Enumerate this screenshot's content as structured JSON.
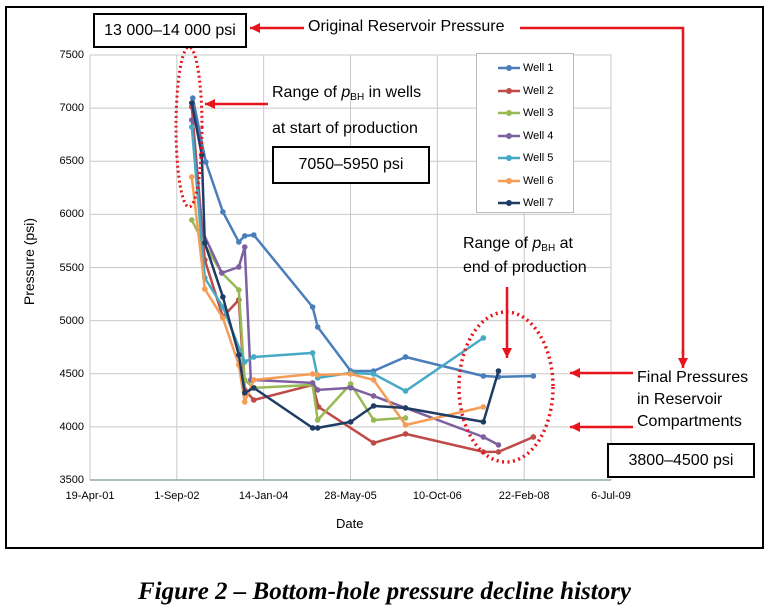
{
  "chart_data": {
    "type": "line",
    "xlabel": "Date",
    "ylabel": "Pressure (psi)",
    "ylim": [
      3500,
      7500
    ],
    "xlim": [
      "2001-04-19",
      "2009-07-06"
    ],
    "x_tick_labels": [
      "19-Apr-01",
      "1-Sep-02",
      "14-Jan-04",
      "28-May-05",
      "10-Oct-06",
      "22-Feb-08",
      "6-Jul-09"
    ],
    "y_tick_labels": [
      "3500",
      "4000",
      "4500",
      "5000",
      "5500",
      "6000",
      "6500",
      "7000",
      "7500"
    ],
    "grid": true,
    "legend_position": "top-right",
    "series": [
      {
        "name": "Well 1",
        "color": "#4a7ebb",
        "points": [
          [
            "2002-12-02",
            7095
          ],
          [
            "2003-02-15",
            6493
          ],
          [
            "2003-05-24",
            6023
          ],
          [
            "2003-08-24",
            5740
          ],
          [
            "2003-09-27",
            5797
          ],
          [
            "2003-11-18",
            5806
          ],
          [
            "2004-10-22",
            5128
          ],
          [
            "2004-11-20",
            4940
          ],
          [
            "2005-05-29",
            4526
          ],
          [
            "2005-10-08",
            4526
          ],
          [
            "2006-04-10",
            4658
          ],
          [
            "2007-07-02",
            4479
          ],
          [
            "2007-09-27",
            4470
          ],
          [
            "2008-04-15",
            4479
          ]
        ]
      },
      {
        "name": "Well 2",
        "color": "#be4b48",
        "points": [
          [
            "2002-11-26",
            7011
          ],
          [
            "2003-02-09",
            5571
          ],
          [
            "2003-05-24",
            5035
          ],
          [
            "2003-08-24",
            5195
          ],
          [
            "2003-09-27",
            4348
          ],
          [
            "2003-11-18",
            4253
          ],
          [
            "2004-10-22",
            4395
          ],
          [
            "2004-11-25",
            4188
          ],
          [
            "2005-10-08",
            3849
          ],
          [
            "2006-04-10",
            3934
          ],
          [
            "2007-07-02",
            3764
          ],
          [
            "2007-09-27",
            3764
          ],
          [
            "2008-04-15",
            3905
          ]
        ]
      },
      {
        "name": "Well 3",
        "color": "#98b954",
        "points": [
          [
            "2002-11-26",
            5947
          ],
          [
            "2003-01-23",
            5759
          ],
          [
            "2003-05-18",
            5449
          ],
          [
            "2003-08-24",
            5289
          ],
          [
            "2003-09-27",
            4442
          ],
          [
            "2003-11-18",
            4367
          ],
          [
            "2004-10-22",
            4395
          ],
          [
            "2004-11-20",
            4065
          ],
          [
            "2005-05-29",
            4404
          ],
          [
            "2005-10-08",
            4065
          ],
          [
            "2006-04-10",
            4084
          ]
        ]
      },
      {
        "name": "Well 4",
        "color": "#7d60a0",
        "points": [
          [
            "2002-11-26",
            6888
          ],
          [
            "2003-01-23",
            5853
          ],
          [
            "2003-05-18",
            5449
          ],
          [
            "2003-08-24",
            5505
          ],
          [
            "2003-09-27",
            5693
          ],
          [
            "2003-11-01",
            4442
          ],
          [
            "2004-10-22",
            4414
          ],
          [
            "2004-11-20",
            4348
          ],
          [
            "2005-05-29",
            4367
          ],
          [
            "2005-10-08",
            4291
          ],
          [
            "2007-07-02",
            3905
          ],
          [
            "2007-09-27",
            3830
          ]
        ]
      },
      {
        "name": "Well 5",
        "color": "#46aac5",
        "points": [
          [
            "2002-11-26",
            6822
          ],
          [
            "2003-02-09",
            5402
          ],
          [
            "2003-05-24",
            5128
          ],
          [
            "2003-09-27",
            4611
          ],
          [
            "2003-11-18",
            4658
          ],
          [
            "2004-10-22",
            4696
          ],
          [
            "2004-11-20",
            4461
          ],
          [
            "2005-05-29",
            4508
          ],
          [
            "2005-10-08",
            4498
          ],
          [
            "2006-04-10",
            4338
          ],
          [
            "2007-07-02",
            4837
          ]
        ]
      },
      {
        "name": "Well 6",
        "color": "#f59d56",
        "points": [
          [
            "2002-11-26",
            6352
          ],
          [
            "2003-02-09",
            5298
          ],
          [
            "2003-05-24",
            5025
          ],
          [
            "2003-08-24",
            4583
          ],
          [
            "2003-09-27",
            4235
          ],
          [
            "2003-11-18",
            4442
          ],
          [
            "2004-10-22",
            4498
          ],
          [
            "2004-11-20",
            4489
          ],
          [
            "2005-05-29",
            4498
          ],
          [
            "2005-10-08",
            4442
          ],
          [
            "2006-04-10",
            4018
          ],
          [
            "2007-07-02",
            4188
          ]
        ]
      },
      {
        "name": "Well 7",
        "color": "#1f3d64",
        "points": [
          [
            "2002-11-26",
            7048
          ],
          [
            "2003-01-23",
            6559
          ],
          [
            "2003-02-09",
            5731
          ],
          [
            "2003-05-24",
            5223
          ],
          [
            "2003-08-24",
            4677
          ],
          [
            "2003-09-27",
            4320
          ],
          [
            "2003-11-18",
            4367
          ],
          [
            "2004-10-22",
            3990
          ],
          [
            "2004-11-20",
            3990
          ],
          [
            "2005-05-29",
            4047
          ],
          [
            "2005-10-08",
            4197
          ],
          [
            "2006-04-10",
            4178
          ],
          [
            "2007-07-02",
            4047
          ],
          [
            "2007-09-27",
            4526
          ]
        ]
      }
    ],
    "annotations": {
      "original_pressure_box": "13 000–14 000 psi",
      "original_pressure_label": "Original Reservoir Pressure",
      "start_range_line1_pre": "Range of ",
      "p": "p",
      "bh": "BH",
      "start_range_line1_post": " in wells",
      "start_range_line2": "at start of production",
      "start_range_box": "7050–5950 psi",
      "end_range_line1_post": " at",
      "end_range_line2": "end of production",
      "final_line1": "Final Pressures",
      "final_line2": "in Reservoir",
      "final_line3": "Compartments",
      "final_box": "3800–4500 psi"
    },
    "annotation_color": "#e8141b"
  },
  "caption": "Figure 2 – Bottom-hole pressure decline history"
}
